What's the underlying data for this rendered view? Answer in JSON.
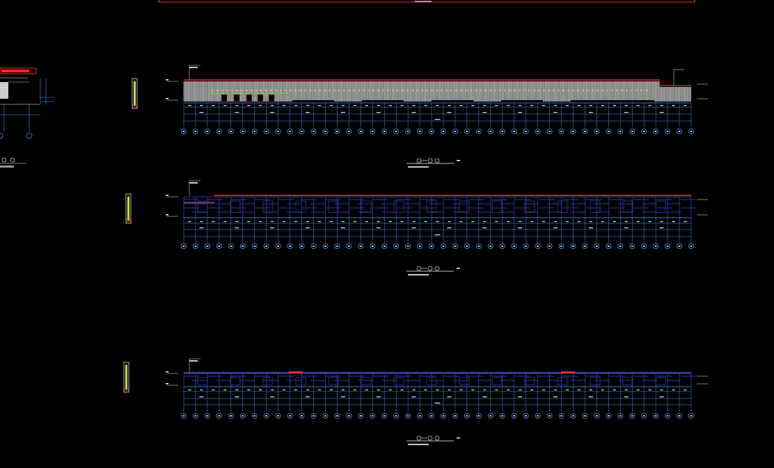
{
  "colors": {
    "background": "#000000",
    "grid_line": "#3fa0ff",
    "column_line": "#3fa0ff",
    "roof_edge": "#ff2a2a",
    "facade_fill_elev1": "#ffffff",
    "facade_accent_yellow": "#ffe84a",
    "facade_accent_green": "#4dff4d",
    "frame_blue": "#2b3aa8",
    "label_white": "#ffffff",
    "axis_bubble": "#3fa0ff"
  },
  "icons": [
    "grid-axis-bubble",
    "elevation-marker",
    "detail-legend-icon"
  ],
  "elevations": [
    {
      "id": "elevation-1",
      "axis_count": 44
    },
    {
      "id": "elevation-2",
      "axis_count": 44
    },
    {
      "id": "elevation-3",
      "axis_count": 44
    }
  ]
}
